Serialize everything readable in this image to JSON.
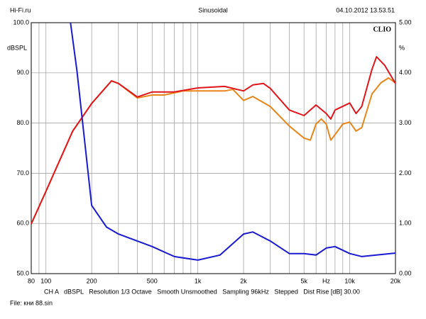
{
  "chart_data": {
    "type": "line",
    "header_left": "Hi-Fi.ru",
    "title": "Sinusoidal",
    "header_right": "04.10.2012 13.53.51",
    "brand": "CLIO",
    "y_label": "dBSPL",
    "y2_label": "%",
    "x_label": "Hz",
    "footer": "CH A   dBSPL   Resolution 1/3 Octave   Smooth Unsmoothed   Sampling 96kHz   Stepped   Dist Rise [dB] 30.00",
    "file": "File: кни 88.sin",
    "log_x": true,
    "grid": true,
    "xlim": [
      80,
      20000
    ],
    "xticks": [
      80,
      100,
      200,
      500,
      {
        "value": 1000,
        "label": "1k"
      },
      {
        "value": 2000,
        "label": "2k"
      },
      {
        "value": 5000,
        "label": "5k"
      },
      {
        "value": 10000,
        "label": "10k"
      },
      {
        "value": 20000,
        "label": "20k"
      }
    ],
    "x_minor_ticks": [
      90,
      300,
      400,
      600,
      700,
      800,
      900,
      3000,
      4000,
      6000,
      7000,
      8000,
      9000
    ],
    "ylim": [
      50,
      100
    ],
    "yticks": [
      {
        "value": 50,
        "label": "50.0"
      },
      {
        "value": 60,
        "label": "60.0"
      },
      {
        "value": 70,
        "label": "70.0"
      },
      {
        "value": 80,
        "label": "80.0"
      },
      {
        "value": 90,
        "label": "90.0"
      },
      {
        "value": 100,
        "label": "100.0"
      }
    ],
    "y2lim": [
      0,
      5
    ],
    "y2ticks": [
      {
        "value": 0,
        "label": "0.00"
      },
      {
        "value": 1,
        "label": "1.00"
      },
      {
        "value": 2,
        "label": "2.00"
      },
      {
        "value": 3,
        "label": "3.00"
      },
      {
        "value": 4,
        "label": "4.00"
      },
      {
        "value": 5,
        "label": "5.00"
      }
    ],
    "series": [
      {
        "color": "#e8861a",
        "x": [
          80,
          100,
          150,
          200,
          270,
          300,
          400,
          500,
          600,
          800,
          1000,
          1500,
          1700,
          2000,
          2300,
          3000,
          4000,
          5000,
          5500,
          6000,
          6500,
          7000,
          7500,
          8000,
          9000,
          10000,
          11000,
          12000,
          14000,
          16000,
          18000,
          20000
        ],
        "values": [
          59.9,
          66.4,
          78.4,
          83.9,
          88.4,
          87.9,
          85,
          85.6,
          85.6,
          86.4,
          86.4,
          86.4,
          86.7,
          84.5,
          85.3,
          83.3,
          79.4,
          77,
          76.6,
          79.8,
          80.8,
          79.8,
          76.6,
          77.7,
          79.8,
          80.2,
          78.4,
          79.1,
          85.8,
          88,
          89,
          88
        ]
      },
      {
        "color": "#e0161c",
        "x": [
          80,
          100,
          150,
          200,
          270,
          300,
          400,
          500,
          700,
          1000,
          1500,
          2000,
          2300,
          2700,
          3000,
          4000,
          5000,
          6000,
          7000,
          7500,
          8000,
          10000,
          11000,
          12000,
          14000,
          15000,
          17000,
          20000
        ],
        "values": [
          59.9,
          66.4,
          78.4,
          83.9,
          88.4,
          87.9,
          85.2,
          86.2,
          86.2,
          87,
          87.3,
          86.4,
          87.6,
          87.9,
          86.9,
          82.6,
          81.5,
          83.6,
          81.9,
          80.8,
          82.6,
          84,
          81.9,
          83.3,
          90.7,
          93.2,
          91.5,
          87.9
        ]
      },
      {
        "color": "#1a1ad0",
        "axis": "y2",
        "x": [
          145,
          160,
          180,
          200,
          250,
          300,
          500,
          700,
          1000,
          1400,
          2000,
          2300,
          3000,
          4000,
          5000,
          6000,
          7000,
          8000,
          10000,
          12000,
          20000
        ],
        "values": [
          5.0,
          4.04,
          2.63,
          1.36,
          0.93,
          0.79,
          0.54,
          0.34,
          0.27,
          0.37,
          0.79,
          0.83,
          0.65,
          0.4,
          0.4,
          0.37,
          0.51,
          0.54,
          0.4,
          0.34,
          0.41
        ]
      }
    ]
  }
}
